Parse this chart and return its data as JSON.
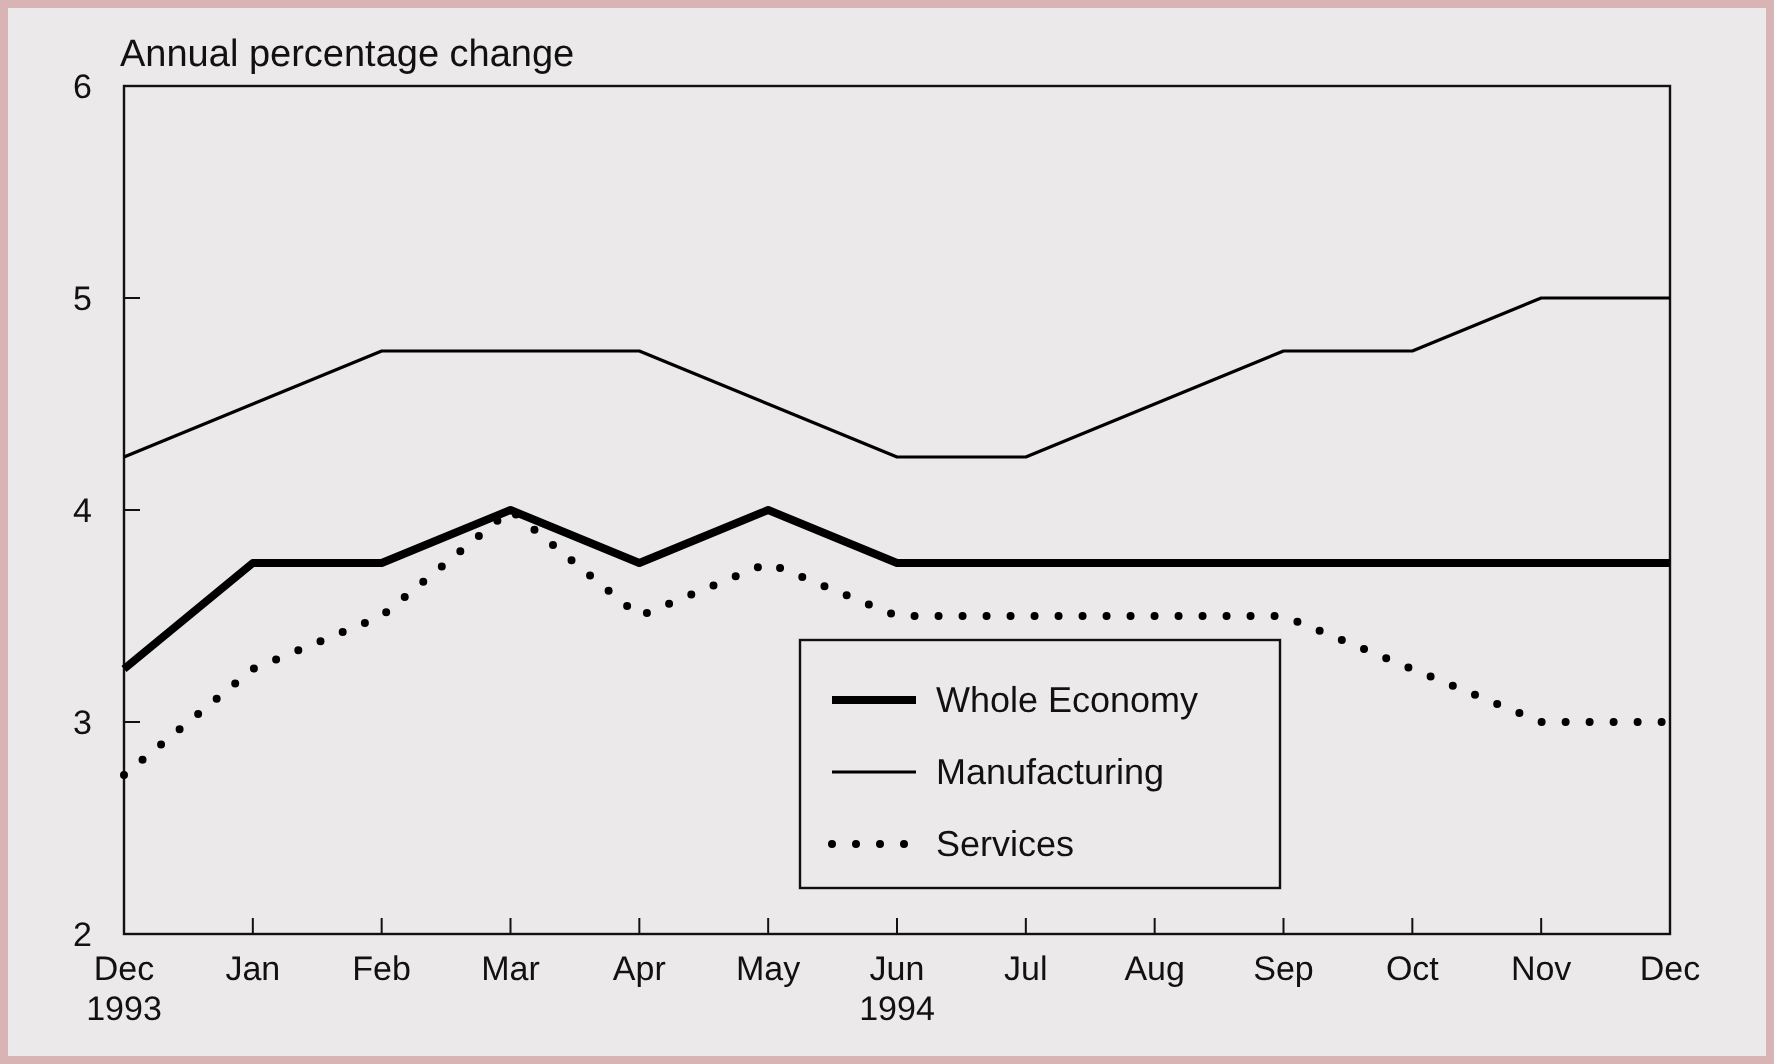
{
  "chart_data": {
    "type": "line",
    "ylabel": "Annual percentage change",
    "categories": [
      "Dec\n1993",
      "Jan",
      "Feb",
      "Mar",
      "Apr",
      "May",
      "Jun\n1994",
      "Jul",
      "Aug",
      "Sep",
      "Oct",
      "Nov",
      "Dec"
    ],
    "ylim": [
      2,
      6
    ],
    "yticks": [
      2,
      3,
      4,
      5,
      6
    ],
    "grid": false,
    "legend": "bottom",
    "marker": "none",
    "series": [
      {
        "name": "Whole Economy",
        "color": "#000000",
        "line_style": "solid",
        "values": [
          3.25,
          3.75,
          3.75,
          4.0,
          3.75,
          4.0,
          3.75,
          3.75,
          3.75,
          3.75,
          3.75,
          3.75,
          3.75
        ]
      },
      {
        "name": "Manufacturing",
        "color": "#000000",
        "line_style": "solid",
        "values": [
          4.25,
          4.5,
          4.75,
          4.75,
          4.75,
          4.5,
          4.25,
          4.25,
          4.5,
          4.75,
          4.75,
          5.0,
          5.0
        ]
      },
      {
        "name": "Services",
        "color": "#000000",
        "line_style": "dotted",
        "values": [
          2.75,
          3.25,
          3.5,
          4.0,
          3.5,
          3.75,
          3.5,
          3.5,
          3.5,
          3.5,
          3.25,
          3.0,
          3.0
        ]
      }
    ]
  }
}
